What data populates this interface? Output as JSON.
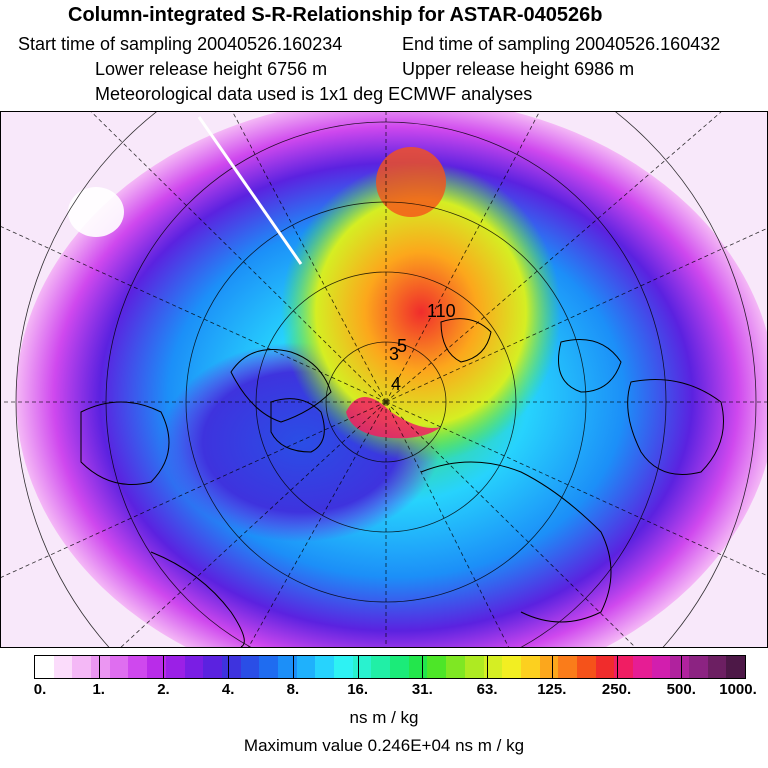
{
  "header": {
    "title": "Column-integrated S-R-Relationship for ASTAR-040526b",
    "start_time": "Start time of sampling 20040526.160234",
    "end_time": "End time of sampling 20040526.160432",
    "lower_release": "Lower release height 6756 m",
    "upper_release": "Upper release height 6986 m",
    "met_data": "Meteorological data used is 1x1 deg ECMWF analyses"
  },
  "map": {
    "projection": "polar-stereographic",
    "contour_labels": [
      "110",
      "3",
      "5",
      "4"
    ]
  },
  "colorbar": {
    "ticks": [
      "0.",
      "1.",
      "2.",
      "4.",
      "8.",
      "16.",
      "31.",
      "63.",
      "125.",
      "250.",
      "500.",
      "1000."
    ],
    "colors": [
      "#ffffff",
      "#fbdcfb",
      "#f4b8f6",
      "#eb96f2",
      "#df6ef0",
      "#cf48ee",
      "#b92ce9",
      "#9b20e6",
      "#7a1ee4",
      "#5b22e0",
      "#3e33de",
      "#2a4ee6",
      "#1f6cf0",
      "#1c8ff8",
      "#1fb1fc",
      "#27d3fd",
      "#2ef2f3",
      "#29f2cf",
      "#21efa6",
      "#1beb79",
      "#23e64c",
      "#4de628",
      "#7fe723",
      "#aeea22",
      "#d5ee23",
      "#f2ee22",
      "#fcd01f",
      "#fca71c",
      "#fa7c1a",
      "#f5521a",
      "#f02c2c",
      "#f01d63",
      "#e61d94",
      "#d21eae",
      "#b0229e",
      "#8c2382",
      "#6c1f62",
      "#4d1847"
    ],
    "units": "ns m / kg"
  },
  "max_value": "Maximum value  0.246E+04 ns m / kg"
}
